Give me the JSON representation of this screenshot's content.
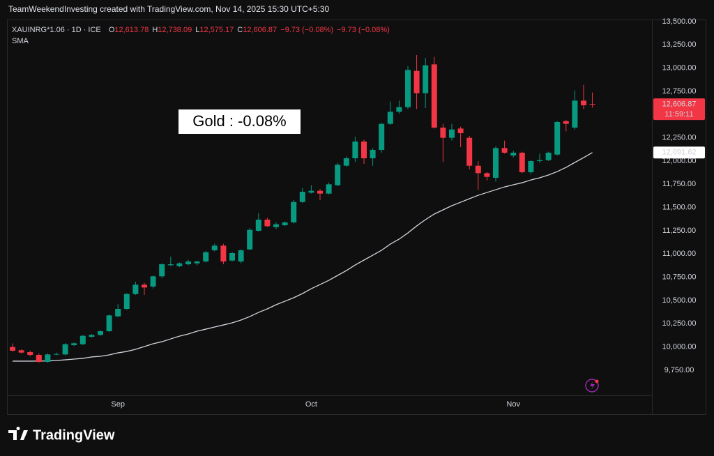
{
  "header": {
    "credit": "TeamWeekendInvesting created with TradingView.com, Nov 14, 2025 15:30 UTC+5:30"
  },
  "footer": {
    "logo_text": "TradingView"
  },
  "chart_data": {
    "type": "candlestick",
    "title": "XAUINRG*1.06 · 1D · ICE",
    "legend": [
      {
        "label": "O",
        "value": "12,613.78"
      },
      {
        "label": "H",
        "value": "12,738.09"
      },
      {
        "label": "L",
        "value": "12,575.17"
      },
      {
        "label": "C",
        "value": "12,606.87"
      }
    ],
    "change_labels": [
      "−9.73 (−0.08%)",
      "−9.73 (−0.08%)"
    ],
    "legend_value_color": "#f23645",
    "annotation": "Gold : -0.08%",
    "categories": [
      null,
      null,
      null,
      null,
      null,
      null,
      null,
      null,
      null,
      null,
      null,
      null,
      "Sep",
      null,
      null,
      null,
      null,
      null,
      null,
      null,
      null,
      null,
      null,
      null,
      null,
      null,
      null,
      null,
      null,
      null,
      null,
      null,
      null,
      null,
      "Oct",
      null,
      null,
      null,
      null,
      null,
      null,
      null,
      null,
      null,
      null,
      null,
      null,
      null,
      null,
      null,
      null,
      null,
      null,
      null,
      null,
      null,
      null,
      "Nov",
      null,
      null,
      null,
      null,
      null,
      null,
      null,
      null,
      null
    ],
    "open": [
      10000,
      9965,
      9945,
      9915,
      9840,
      9920,
      9920,
      10020,
      10030,
      10110,
      10130,
      10170,
      10330,
      10410,
      10570,
      10670,
      10650,
      10760,
      10880,
      10870,
      10890,
      10900,
      10920,
      11040,
      11090,
      10930,
      10920,
      11050,
      11250,
      11370,
      11290,
      11310,
      11340,
      11560,
      11660,
      11680,
      11650,
      11740,
      11950,
      12030,
      12210,
      12030,
      12120,
      12400,
      12530,
      12580,
      12970,
      12730,
      13040,
      12360,
      12250,
      12350,
      12250,
      11950,
      11870,
      11820,
      12140,
      12060,
      12090,
      11880,
      12000,
      12010,
      12070,
      12430,
      12360,
      12650,
      12613.78
    ],
    "high": [
      10040,
      9975,
      9960,
      9930,
      9930,
      9940,
      10040,
      10050,
      10130,
      10140,
      10180,
      10350,
      10460,
      10580,
      10700,
      10690,
      10770,
      10900,
      10970,
      10910,
      10940,
      10930,
      11030,
      11110,
      11110,
      11020,
      11050,
      11280,
      11440,
      11390,
      11340,
      11350,
      11580,
      11710,
      11740,
      11700,
      11770,
      11980,
      12050,
      12260,
      12230,
      12140,
      12410,
      12640,
      12650,
      13020,
      13140,
      13110,
      13120,
      12400,
      12400,
      12370,
      12270,
      12000,
      11880,
      12160,
      12220,
      12110,
      12100,
      12010,
      12080,
      12100,
      12430,
      12440,
      12760,
      12820,
      12738.09
    ],
    "low": [
      9950,
      9930,
      9900,
      9830,
      9830,
      9910,
      9910,
      10010,
      10020,
      10100,
      10120,
      10160,
      10320,
      10400,
      10560,
      10560,
      10630,
      10740,
      10870,
      10860,
      10880,
      10880,
      10910,
      11030,
      10890,
      10920,
      10900,
      11040,
      11240,
      11290,
      11270,
      11300,
      11330,
      11550,
      11650,
      11580,
      11640,
      11730,
      11940,
      11990,
      11970,
      11950,
      12090,
      12390,
      12510,
      12560,
      12560,
      12570,
      12350,
      11990,
      12220,
      12150,
      11910,
      11690,
      11790,
      11780,
      12080,
      12040,
      11870,
      11860,
      11980,
      12000,
      12060,
      12320,
      12340,
      12560,
      12575.17
    ],
    "close": [
      9960,
      9940,
      9915,
      9840,
      9920,
      9925,
      10030,
      10040,
      10120,
      10130,
      10170,
      10340,
      10410,
      10570,
      10670,
      10640,
      10760,
      10890,
      10890,
      10900,
      10920,
      10920,
      11020,
      11090,
      10920,
      11010,
      11040,
      11260,
      11370,
      11300,
      11320,
      11340,
      11560,
      11670,
      11680,
      11650,
      11750,
      11960,
      12030,
      12210,
      12030,
      12120,
      12400,
      12530,
      12580,
      12980,
      12730,
      13030,
      12360,
      12250,
      12340,
      12300,
      11950,
      11870,
      11830,
      12140,
      12090,
      12090,
      11880,
      12000,
      12010,
      12090,
      12420,
      12400,
      12650,
      12600,
      12606.87
    ],
    "up_color": "#089981",
    "down_color": "#f23645",
    "overlays": [
      {
        "name": "SMA",
        "color": "#d1d4dc",
        "values": [
          9848,
          9848,
          9848,
          9849,
          9850,
          9855,
          9862,
          9870,
          9878,
          9893,
          9900,
          9915,
          9937,
          9952,
          9975,
          10005,
          10035,
          10057,
          10087,
          10117,
          10140,
          10170,
          10192,
          10215,
          10237,
          10260,
          10290,
          10327,
          10372,
          10410,
          10455,
          10492,
          10530,
          10575,
          10627,
          10672,
          10717,
          10770,
          10822,
          10882,
          10935,
          10987,
          11040,
          11107,
          11160,
          11227,
          11302,
          11370,
          11430,
          11475,
          11520,
          11557,
          11595,
          11632,
          11662,
          11692,
          11722,
          11745,
          11767,
          11797,
          11820,
          11850,
          11887,
          11932,
          11985,
          12037,
          12091.62
        ]
      }
    ],
    "price_labels": [
      {
        "value": 12606.87,
        "label": "12,606.87",
        "countdown": "11:59:11",
        "color": "#f23645"
      },
      {
        "value": 12091.62,
        "label": "12,091.62",
        "color": "#ffffff"
      }
    ],
    "ylim": [
      9480,
      13522.5
    ],
    "yticks": [
      {
        "value": 9750,
        "label": "9,750.00"
      },
      {
        "value": 10000,
        "label": "10,000.00"
      },
      {
        "value": 10250,
        "label": "10,250.00"
      },
      {
        "value": 10500,
        "label": "10,500.00"
      },
      {
        "value": 10750,
        "label": "10,750.00"
      },
      {
        "value": 11000,
        "label": "11,000.00"
      },
      {
        "value": 11250,
        "label": "11,250.00"
      },
      {
        "value": 11500,
        "label": "11,500.00"
      },
      {
        "value": 11750,
        "label": "11,750.00"
      },
      {
        "value": 12000,
        "label": "12,000.00"
      },
      {
        "value": 12250,
        "label": "12,250.00"
      },
      {
        "value": 12500,
        "label": "12,500.00"
      },
      {
        "value": 12750,
        "label": "12,750.00"
      },
      {
        "value": 13000,
        "label": "13,000.00"
      },
      {
        "value": 13250,
        "label": "13,250.00"
      },
      {
        "value": 13500,
        "label": "13,500.00"
      }
    ],
    "grid": false
  }
}
